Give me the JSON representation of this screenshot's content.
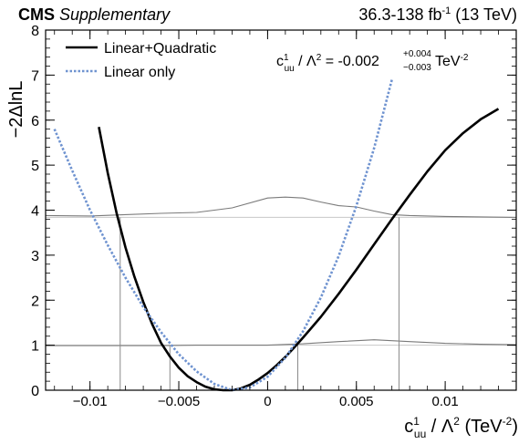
{
  "header": {
    "experiment": "CMS",
    "tag": "Supplementary",
    "luminosity": "36.3-138 fb",
    "lumi_exponent": "-1",
    "energy": "(13 TeV)"
  },
  "annotation": {
    "param": "c",
    "param_sup": "1",
    "param_sub": "uu",
    "lambda_part": " / Λ",
    "lambda_sup": "2",
    "value_text": " = -0.002",
    "err_up": "+0.004",
    "err_down": "−0.003",
    "unit": " TeV",
    "unit_sup": "-2"
  },
  "axes": {
    "y_label": "−2ΔlnL",
    "x_label_param": "c",
    "x_label_sup": "1",
    "x_label_sub": "uu",
    "x_label_rest": " / Λ",
    "x_label_sup2": "2",
    "x_label_unit": " (TeV",
    "x_label_unit_sup": "-2",
    "x_label_close": ")"
  },
  "chart_data": {
    "type": "line",
    "xlim": [
      -0.0125,
      0.014
    ],
    "ylim": [
      0,
      8
    ],
    "x_ticks": [
      -0.01,
      -0.005,
      0,
      0.005,
      0.01
    ],
    "x_tick_labels": [
      "−0.01",
      "−0.005",
      "0",
      "0.005",
      "0.01"
    ],
    "y_ticks": [
      0,
      1,
      2,
      3,
      4,
      5,
      6,
      7,
      8
    ],
    "y_tick_labels": [
      "0",
      "1",
      "2",
      "3",
      "4",
      "5",
      "6",
      "7",
      "8"
    ],
    "best_fit": -0.002,
    "interval_68": [
      -0.0055,
      0.0017
    ],
    "interval_95": [
      -0.0083,
      0.0074
    ],
    "threshold_lines": [
      1.0,
      3.84
    ],
    "series": [
      {
        "name": "Linear+Quadratic",
        "color": "#000000",
        "style": "solid",
        "x": [
          -0.0095,
          -0.009,
          -0.0085,
          -0.008,
          -0.0075,
          -0.007,
          -0.0065,
          -0.006,
          -0.0055,
          -0.005,
          -0.0045,
          -0.004,
          -0.0035,
          -0.003,
          -0.0025,
          -0.002,
          -0.0015,
          -0.001,
          -0.0005,
          0.0,
          0.0005,
          0.001,
          0.0015,
          0.002,
          0.0025,
          0.003,
          0.004,
          0.005,
          0.006,
          0.007,
          0.008,
          0.009,
          0.01,
          0.011,
          0.012,
          0.013
        ],
        "values": [
          5.85,
          4.82,
          3.93,
          3.17,
          2.52,
          1.96,
          1.47,
          1.05,
          0.75,
          0.5,
          0.31,
          0.18,
          0.08,
          0.02,
          0.0,
          0.0,
          0.04,
          0.12,
          0.24,
          0.38,
          0.55,
          0.74,
          0.95,
          1.17,
          1.4,
          1.63,
          2.14,
          2.68,
          3.24,
          3.8,
          4.34,
          4.86,
          5.33,
          5.71,
          6.02,
          6.25
        ]
      },
      {
        "name": "Linear only",
        "color": "#6f93d0",
        "style": "dotted",
        "x": [
          -0.012,
          -0.011,
          -0.01,
          -0.009,
          -0.008,
          -0.007,
          -0.006,
          -0.005,
          -0.004,
          -0.003,
          -0.002,
          -0.001,
          0.0,
          0.001,
          0.002,
          0.003,
          0.004,
          0.005,
          0.006,
          0.007
        ],
        "values": [
          5.8,
          4.88,
          4.0,
          3.22,
          2.5,
          1.85,
          1.29,
          0.8,
          0.42,
          0.14,
          0.0,
          0.06,
          0.3,
          0.72,
          1.31,
          2.06,
          2.98,
          4.1,
          5.38,
          6.9
        ]
      }
    ],
    "threshold_curves": [
      {
        "x": [
          -0.0125,
          -0.01,
          -0.008,
          -0.006,
          -0.004,
          -0.002,
          0.0,
          0.001,
          0.002,
          0.003,
          0.004,
          0.005,
          0.006,
          0.007,
          0.008,
          0.01,
          0.012,
          0.014
        ],
        "values": [
          3.88,
          3.87,
          3.9,
          3.93,
          3.95,
          4.05,
          4.27,
          4.29,
          4.27,
          4.18,
          4.1,
          4.07,
          3.98,
          3.9,
          3.88,
          3.86,
          3.85,
          3.84
        ]
      },
      {
        "x": [
          -0.0125,
          -0.01,
          -0.008,
          -0.006,
          -0.004,
          -0.002,
          0.0,
          0.002,
          0.004,
          0.006,
          0.008,
          0.01,
          0.012,
          0.014
        ],
        "values": [
          0.99,
          0.99,
          0.99,
          0.99,
          1.0,
          1.0,
          1.0,
          1.03,
          1.08,
          1.12,
          1.08,
          1.04,
          1.02,
          1.01
        ]
      }
    ]
  }
}
